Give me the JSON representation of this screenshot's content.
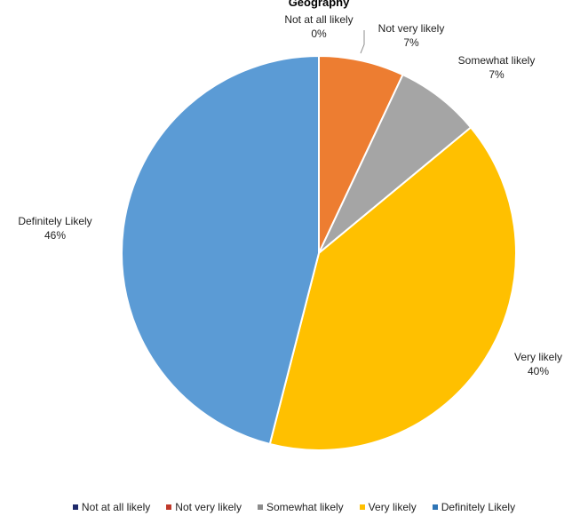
{
  "chart_data": {
    "type": "pie",
    "title": "Geography",
    "categories": [
      "Not at all likely",
      "Not very likely",
      "Somewhat likely",
      "Very likely",
      "Definitely Likely"
    ],
    "values": [
      0,
      7,
      7,
      40,
      46
    ],
    "labels": [
      {
        "name": "Not at all likely",
        "pct": "0%"
      },
      {
        "name": "Not very likely",
        "pct": "7%"
      },
      {
        "name": "Somewhat likely",
        "pct": "7%"
      },
      {
        "name": "Very likely",
        "pct": "40%"
      },
      {
        "name": "Definitely Likely",
        "pct": "46%"
      }
    ],
    "colors": [
      "#1f3a7a",
      "#ed7d31",
      "#a5a5a5",
      "#ffc000",
      "#5b9bd5"
    ],
    "legend_colors": [
      "#1f2a6b",
      "#c0392b",
      "#8c8c8c",
      "#ffc000",
      "#2e75b6"
    ],
    "legend_position": "bottom"
  }
}
